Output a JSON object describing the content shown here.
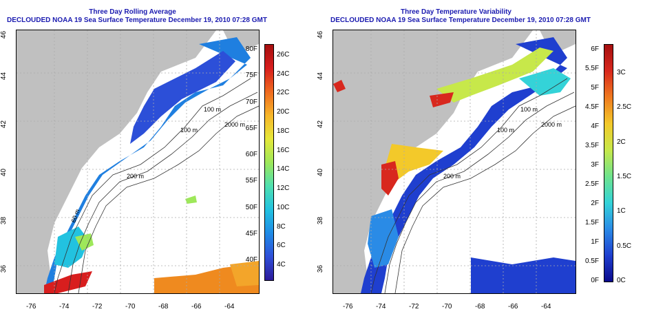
{
  "left_panel": {
    "title_line1": "Three Day Rolling Average",
    "title_line2": "DECLOUDED NOAA 19 Sea Surface Temperature December 19, 2010 07:28 GMT",
    "colorbar_f_labels": [
      "80F",
      "75F",
      "70F",
      "65F",
      "60F",
      "55F",
      "50F",
      "45F",
      "40F"
    ],
    "colorbar_c_labels": [
      "26C",
      "24C",
      "22C",
      "20C",
      "18C",
      "16C",
      "14C",
      "12C",
      "10C",
      "8C",
      "6C",
      "4C"
    ],
    "contour_labels": [
      "100 m",
      "100 m",
      "2000 m",
      "200 m",
      "60 m"
    ]
  },
  "right_panel": {
    "title_line1": "Three Day Temperature Variability",
    "title_line2": "DECLOUDED NOAA 19 Sea Surface Temperature December 19, 2010 07:28 GMT",
    "colorbar_f_labels": [
      "6F",
      "5.5F",
      "5F",
      "4.5F",
      "4F",
      "3.5F",
      "3F",
      "2.5F",
      "2F",
      "1.5F",
      "1F",
      "0.5F",
      "0F"
    ],
    "colorbar_c_labels": [
      "3C",
      "2.5C",
      "2C",
      "1.5C",
      "1C",
      "0.5C",
      "0C"
    ],
    "contour_labels": [
      "100 m",
      "100 m",
      "2000 m",
      "200 m"
    ]
  },
  "axes": {
    "lat_ticks": [
      "36",
      "38",
      "40",
      "42",
      "44",
      "46"
    ],
    "lon_ticks": [
      "-76",
      "-74",
      "-72",
      "-70",
      "-68",
      "-66",
      "-64"
    ]
  },
  "colors": {
    "title": "#1b1bb0",
    "land": "#c0c0c0",
    "sst_scale": [
      "#2c1a9a",
      "#2f4fd8",
      "#1f8be6",
      "#22c2e0",
      "#4fe0b0",
      "#9ee85a",
      "#e6e83a",
      "#f7b62a",
      "#ef6a1f",
      "#d81e1e",
      "#a50f0f"
    ],
    "var_scale": [
      "#0a0a8c",
      "#1f3fcf",
      "#2a8be6",
      "#34d3d8",
      "#6fe38c",
      "#c7e84a",
      "#f3c92a",
      "#ef7a1f",
      "#d8281e",
      "#a50f0f"
    ]
  }
}
